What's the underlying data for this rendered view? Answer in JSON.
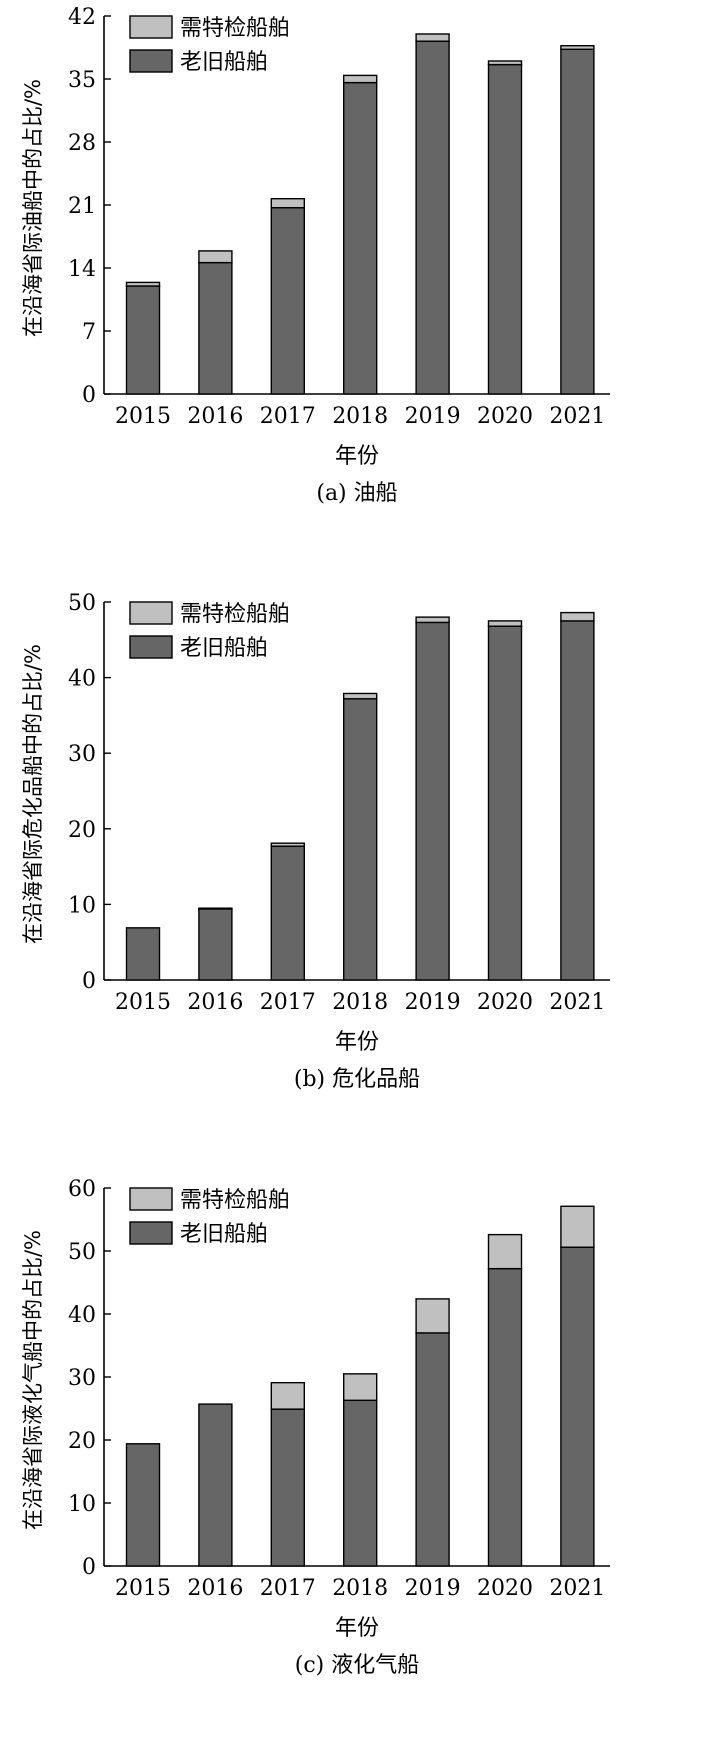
{
  "chart_data": [
    {
      "type": "bar",
      "stacked": true,
      "caption": "(a) 油船",
      "xlabel": "年份",
      "ylabel": "在沿海省际油船中的占比/%",
      "categories": [
        "2015",
        "2016",
        "2017",
        "2018",
        "2019",
        "2020",
        "2021"
      ],
      "ylim": [
        0,
        42
      ],
      "yticks": [
        "0",
        "7",
        "14",
        "21",
        "28",
        "35",
        "42"
      ],
      "legend_position": "top-left",
      "series": [
        {
          "name": "老旧船舶",
          "color": "#666666",
          "values": [
            12.0,
            14.6,
            20.7,
            34.6,
            39.2,
            36.6,
            38.3
          ]
        },
        {
          "name": "需特检船舶",
          "color": "#c0c0c0",
          "values": [
            0.4,
            1.3,
            1.0,
            0.8,
            0.8,
            0.4,
            0.4
          ]
        }
      ]
    },
    {
      "type": "bar",
      "stacked": true,
      "caption": "(b) 危化品船",
      "xlabel": "年份",
      "ylabel": "在沿海省际危化品船中的占比/%",
      "categories": [
        "2015",
        "2016",
        "2017",
        "2018",
        "2019",
        "2020",
        "2021"
      ],
      "ylim": [
        0,
        50
      ],
      "yticks": [
        "0",
        "10",
        "20",
        "30",
        "40",
        "50"
      ],
      "legend_position": "top-left",
      "series": [
        {
          "name": "老旧船舶",
          "color": "#666666",
          "values": [
            6.9,
            9.4,
            17.7,
            37.2,
            47.3,
            46.8,
            47.5
          ]
        },
        {
          "name": "需特检船舶",
          "color": "#c0c0c0",
          "values": [
            0.0,
            0.1,
            0.4,
            0.7,
            0.7,
            0.7,
            1.1
          ]
        }
      ]
    },
    {
      "type": "bar",
      "stacked": true,
      "caption": "(c) 液化气船",
      "xlabel": "年份",
      "ylabel": "在沿海省际液化气船中的占比/%",
      "categories": [
        "2015",
        "2016",
        "2017",
        "2018",
        "2019",
        "2020",
        "2021"
      ],
      "ylim": [
        0,
        60
      ],
      "yticks": [
        "0",
        "10",
        "20",
        "30",
        "40",
        "50",
        "60"
      ],
      "legend_position": "top-left",
      "series": [
        {
          "name": "老旧船舶",
          "color": "#666666",
          "values": [
            19.4,
            25.7,
            24.9,
            26.3,
            37.0,
            47.2,
            50.6
          ]
        },
        {
          "name": "需特检船舶",
          "color": "#c0c0c0",
          "values": [
            0.0,
            0.0,
            4.2,
            4.2,
            5.4,
            5.4,
            6.5
          ]
        }
      ]
    }
  ]
}
